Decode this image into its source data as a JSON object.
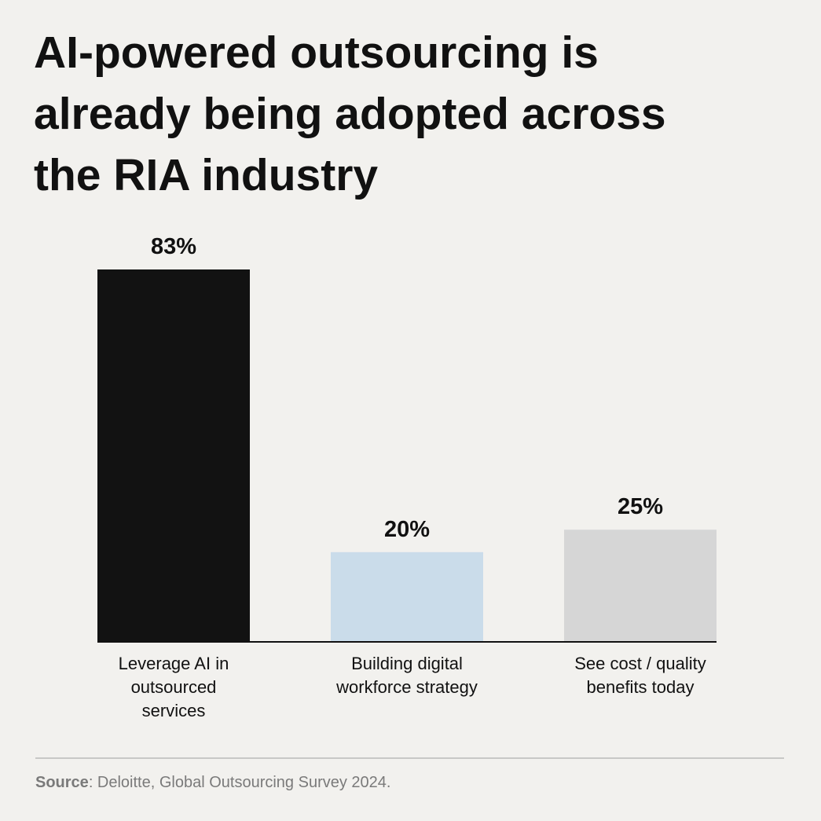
{
  "chart_data": {
    "type": "bar",
    "title": "AI-powered outsourcing is\nalready being adopted across\nthe RIA industry",
    "categories": [
      "Leverage AI in\noutsourced\nservices",
      "Building digital\nworkforce strategy",
      "See cost / quality\nbenefits today"
    ],
    "values": [
      83,
      20,
      25
    ],
    "value_labels": [
      "83%",
      "20%",
      "25%"
    ],
    "colors": [
      "#121212",
      "#cadcea",
      "#d6d6d6"
    ],
    "source_label": "Source",
    "source": ": Deloitte, Global Outsourcing Survey 2024."
  }
}
